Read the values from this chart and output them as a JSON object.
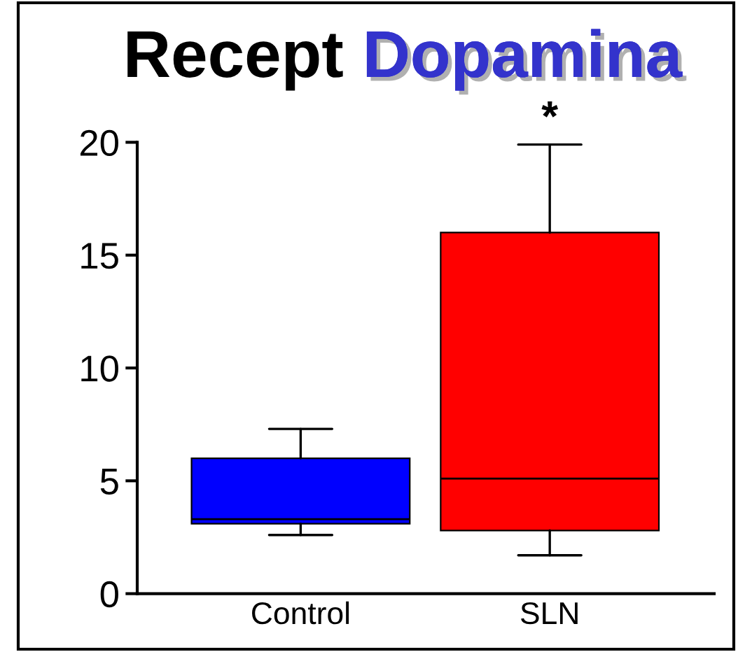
{
  "chart_data": {
    "type": "box",
    "title": "Recept Dopamina",
    "categories": [
      "Control",
      "SLN"
    ],
    "boxes": [
      {
        "low": 2.6,
        "q1": 3.1,
        "median": 3.3,
        "q3": 6.0,
        "high": 7.3
      },
      {
        "low": 1.7,
        "q1": 2.8,
        "median": 5.1,
        "q3": 16.0,
        "high": 19.9
      }
    ],
    "colors": [
      "#0000ff",
      "#ff0000"
    ],
    "ylim": [
      0,
      20
    ],
    "yticks": [
      0,
      5,
      10,
      15,
      20
    ],
    "annotations": [
      "*"
    ]
  }
}
